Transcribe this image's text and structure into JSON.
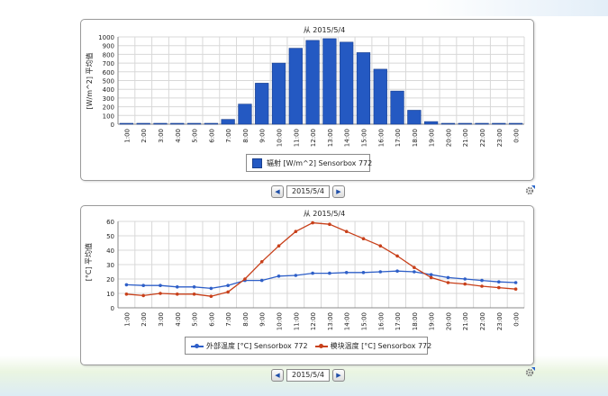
{
  "colors": {
    "bar": "#2459c2",
    "outside_temp": "#2e5fc8",
    "module_temp": "#c8401a",
    "grid": "#d8d8d8"
  },
  "chart1": {
    "title": "从 2015/5/4",
    "legend_label": "辐射 [W/m^2] Sensorbox 772",
    "nav_date": "2015/5/4"
  },
  "chart2": {
    "title": "从 2015/5/4",
    "legend_label_1": "外部温度 [°C] Sensorbox 772",
    "legend_label_2": "模块温度 [°C] Sensorbox 772",
    "nav_date": "2015/5/4"
  },
  "chart_data": [
    {
      "type": "bar",
      "title": "从 2015/5/4",
      "ylabel": "[W/m^2] 平均值",
      "xlabel": "",
      "ylim": [
        0,
        1000
      ],
      "yticks": [
        0,
        100,
        200,
        300,
        400,
        500,
        600,
        700,
        800,
        900,
        1000
      ],
      "grid": true,
      "legend_position": "bottom",
      "categories": [
        "1:00",
        "2:00",
        "3:00",
        "4:00",
        "5:00",
        "6:00",
        "7:00",
        "8:00",
        "9:00",
        "10:00",
        "11:00",
        "12:00",
        "13:00",
        "14:00",
        "15:00",
        "16:00",
        "17:00",
        "18:00",
        "19:00",
        "20:00",
        "21:00",
        "22:00",
        "23:00",
        "0:00"
      ],
      "series": [
        {
          "name": "辐射 [W/m^2] Sensorbox 772",
          "values": [
            0,
            0,
            0,
            0,
            0,
            5,
            55,
            230,
            470,
            700,
            870,
            960,
            980,
            940,
            820,
            630,
            380,
            160,
            30,
            0,
            0,
            0,
            0,
            0
          ]
        }
      ]
    },
    {
      "type": "line",
      "title": "从 2015/5/4",
      "ylabel": "[°C] 平均值",
      "xlabel": "",
      "ylim": [
        0,
        60
      ],
      "yticks": [
        0,
        10,
        20,
        30,
        40,
        50,
        60
      ],
      "grid": true,
      "legend_position": "bottom",
      "categories": [
        "1:00",
        "2:00",
        "3:00",
        "4:00",
        "5:00",
        "6:00",
        "7:00",
        "8:00",
        "9:00",
        "10:00",
        "11:00",
        "12:00",
        "13:00",
        "14:00",
        "15:00",
        "16:00",
        "17:00",
        "18:00",
        "19:00",
        "20:00",
        "21:00",
        "22:00",
        "23:00",
        "0:00"
      ],
      "series": [
        {
          "name": "外部温度 [°C] Sensorbox 772",
          "values": [
            16,
            15.5,
            15.5,
            14.5,
            14.5,
            13.5,
            15.5,
            19,
            19,
            22,
            22.5,
            24,
            24,
            24.5,
            24.5,
            25,
            25.5,
            25,
            23,
            21,
            20,
            19,
            18,
            17.5
          ]
        },
        {
          "name": "模块温度 [°C] Sensorbox 772",
          "values": [
            9.5,
            8.5,
            10,
            9.5,
            9.5,
            8,
            11,
            20,
            32,
            43,
            53,
            59,
            58,
            53,
            48,
            43,
            36,
            28,
            21,
            17.5,
            16.5,
            15,
            14,
            13
          ]
        }
      ]
    }
  ]
}
